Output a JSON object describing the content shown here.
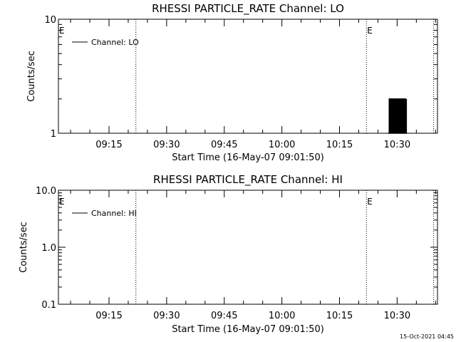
{
  "footer": {
    "timestamp": "15-Oct-2021 04:45"
  },
  "chart_data": [
    {
      "type": "line",
      "title": "RHESSI PARTICLE_RATE Channel: LO",
      "xlabel": "Start Time (16-May-07 09:01:50)",
      "ylabel": "Counts/sec",
      "yscale": "log",
      "ylim": [
        1,
        10
      ],
      "yticks": [
        {
          "value": 1,
          "label": "1"
        },
        {
          "value": 10,
          "label": "10"
        }
      ],
      "xlim": [
        "09:01:50",
        "10:40:30"
      ],
      "xticks": [
        "09:15",
        "09:30",
        "09:45",
        "10:00",
        "10:15",
        "10:30"
      ],
      "markers": [
        {
          "time": "09:01:50",
          "label": "E",
          "line": false
        },
        {
          "time": "09:22:00",
          "label": "",
          "line": true
        },
        {
          "time": "10:22:00",
          "label": "E",
          "line": true
        },
        {
          "time": "10:39:30",
          "label": "",
          "line": true
        }
      ],
      "legend": {
        "position": "top-left",
        "entries": [
          "Channel: LO"
        ]
      },
      "series": [
        {
          "name": "Channel: LO",
          "color": "#000000",
          "x": [
            "10:27:40",
            "10:27:55",
            "10:28:10",
            "10:28:25",
            "10:28:40",
            "10:28:55",
            "10:29:10",
            "10:29:25",
            "10:29:40",
            "10:29:55",
            "10:30:10",
            "10:30:25",
            "10:30:40",
            "10:30:55",
            "10:31:10",
            "10:31:25",
            "10:31:40",
            "10:31:55",
            "10:32:10",
            "10:32:25"
          ],
          "y": [
            1,
            2,
            1,
            2,
            1,
            2,
            1,
            2,
            1,
            2,
            1,
            2,
            1,
            2,
            1,
            2,
            1,
            2,
            1,
            2
          ]
        }
      ]
    },
    {
      "type": "line",
      "title": "RHESSI PARTICLE_RATE Channel: HI",
      "xlabel": "Start Time (16-May-07 09:01:50)",
      "ylabel": "Counts/sec",
      "yscale": "log",
      "ylim": [
        0.1,
        10
      ],
      "yticks": [
        {
          "value": 0.1,
          "label": "0.1"
        },
        {
          "value": 1,
          "label": "1.0"
        },
        {
          "value": 10,
          "label": "10.0"
        }
      ],
      "xlim": [
        "09:01:50",
        "10:40:30"
      ],
      "xticks": [
        "09:15",
        "09:30",
        "09:45",
        "10:00",
        "10:15",
        "10:30"
      ],
      "markers": [
        {
          "time": "09:01:50",
          "label": "E",
          "line": false
        },
        {
          "time": "09:22:00",
          "label": "",
          "line": true
        },
        {
          "time": "10:22:00",
          "label": "E",
          "line": true
        },
        {
          "time": "10:39:30",
          "label": "",
          "line": true
        }
      ],
      "legend": {
        "position": "top-left",
        "entries": [
          "Channel: HI"
        ]
      },
      "series": [
        {
          "name": "Channel: HI",
          "color": "#000000",
          "x": [],
          "y": []
        }
      ]
    }
  ]
}
